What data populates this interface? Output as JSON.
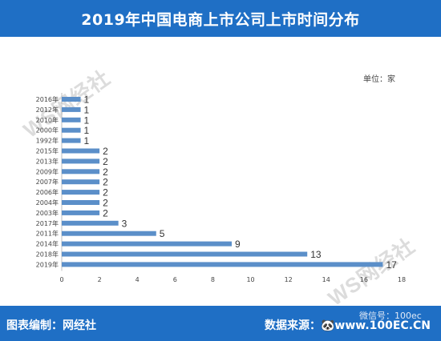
{
  "header": {
    "title": "2019年中国电商上市公司上市时间分布"
  },
  "unit_label": "单位：家",
  "watermark": {
    "text": "WS网经社"
  },
  "footer": {
    "left_text": "图表编制：网经社",
    "right_text": "数据来源：🐼www.100EC.CN",
    "wechat_text": "微信号：100ec"
  },
  "colors": {
    "bar": "#5b8fc9",
    "header_bg": "#1f6fc5"
  },
  "chart_data": {
    "type": "bar",
    "orientation": "horizontal",
    "title": "2019年中国电商上市公司上市时间分布",
    "categories": [
      "2016年",
      "2012年",
      "2010年",
      "2000年",
      "1992年",
      "2015年",
      "2013年",
      "2009年",
      "2007年",
      "2006年",
      "2004年",
      "2003年",
      "2017年",
      "2011年",
      "2014年",
      "2018年",
      "2019年"
    ],
    "values": [
      1,
      1,
      1,
      1,
      1,
      2,
      2,
      2,
      2,
      2,
      2,
      2,
      3,
      5,
      9,
      13,
      17
    ],
    "xlim": [
      0,
      18
    ],
    "xticks": [
      0,
      2,
      4,
      6,
      8,
      10,
      12,
      14,
      16,
      18
    ],
    "grid": false,
    "data_labels": true
  }
}
